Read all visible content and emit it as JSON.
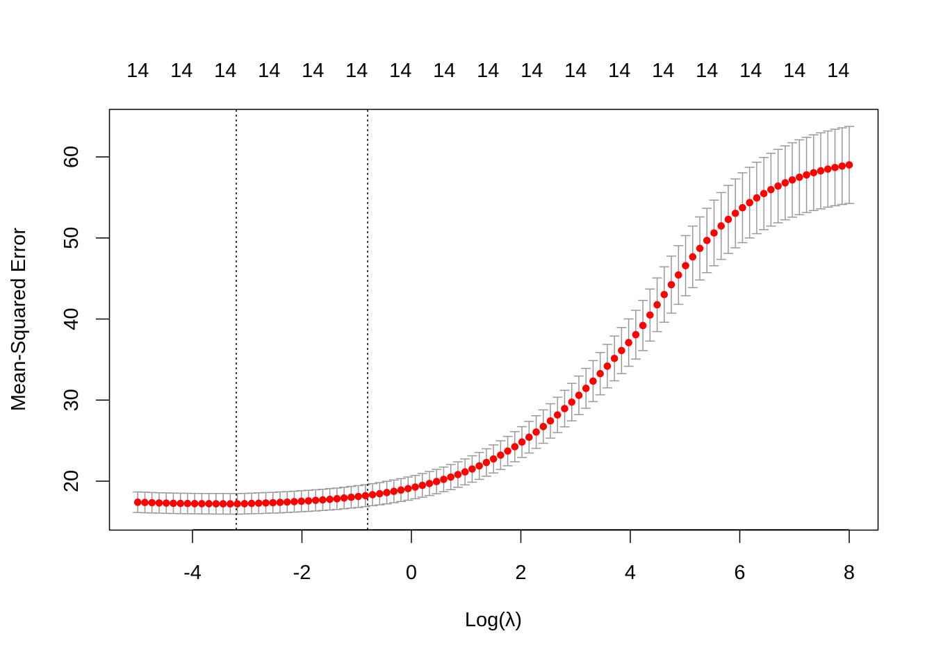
{
  "chart_data": {
    "type": "scatter",
    "title": "",
    "xlabel": "Log(λ)",
    "ylabel": "Mean-Squared Error",
    "xlim": [
      -5.2,
      8.4
    ],
    "ylim": [
      14.2,
      66.1
    ],
    "xticks": [
      -4,
      -2,
      0,
      2,
      4,
      6,
      8
    ],
    "xtick_labels": [
      "-4",
      "-2",
      "0",
      "2",
      "4",
      "6",
      "8"
    ],
    "yticks": [
      20,
      30,
      40,
      50,
      60
    ],
    "ytick_labels": [
      "20",
      "30",
      "40",
      "50",
      "60"
    ],
    "top_axis": {
      "positions": [
        -5,
        -4.2,
        -3.4,
        -2.6,
        -1.8,
        -1,
        -0.2,
        0.6,
        1.4,
        2.2,
        3,
        3.8,
        4.6,
        5.4,
        6.2,
        7,
        7.8
      ],
      "labels": [
        "14",
        "14",
        "14",
        "14",
        "14",
        "14",
        "14",
        "14",
        "14",
        "14",
        "14",
        "14",
        "14",
        "14",
        "14",
        "14",
        "14"
      ]
    },
    "vlines": [
      -3.2,
      -0.8
    ],
    "grid": false,
    "colors": {
      "points": "#ff0000",
      "error_bars": "#999999",
      "vlines": "#000000"
    },
    "x": [
      -5,
      -4.87,
      -4.74,
      -4.61,
      -4.48,
      -4.35,
      -4.22,
      -4.09,
      -3.96,
      -3.83,
      -3.7,
      -3.57,
      -3.44,
      -3.31,
      -3.18,
      -3.05,
      -2.92,
      -2.79,
      -2.66,
      -2.53,
      -2.4,
      -2.27,
      -2.14,
      -2.01,
      -1.88,
      -1.75,
      -1.62,
      -1.49,
      -1.36,
      -1.23,
      -1.1,
      -0.97,
      -0.84,
      -0.71,
      -0.58,
      -0.45,
      -0.32,
      -0.19,
      -0.06,
      0.07,
      0.2,
      0.33,
      0.46,
      0.59,
      0.72,
      0.85,
      0.98,
      1.11,
      1.24,
      1.37,
      1.5,
      1.63,
      1.76,
      1.89,
      2.02,
      2.15,
      2.28,
      2.41,
      2.54,
      2.67,
      2.8,
      2.93,
      3.06,
      3.19,
      3.32,
      3.45,
      3.58,
      3.71,
      3.84,
      3.97,
      4.1,
      4.23,
      4.36,
      4.49,
      4.62,
      4.75,
      4.88,
      5.01,
      5.14,
      5.27,
      5.4,
      5.53,
      5.66,
      5.79,
      5.92,
      6.05,
      6.18,
      6.31,
      6.44,
      6.57,
      6.7,
      6.83,
      6.96,
      7.09,
      7.22,
      7.35,
      7.48,
      7.61,
      7.74,
      7.87,
      8.0
    ],
    "mse": [
      17.4,
      17.37,
      17.34,
      17.31,
      17.29,
      17.27,
      17.25,
      17.24,
      17.23,
      17.22,
      17.22,
      17.21,
      17.21,
      17.2,
      17.2,
      17.22,
      17.25,
      17.28,
      17.31,
      17.34,
      17.38,
      17.42,
      17.47,
      17.52,
      17.57,
      17.63,
      17.69,
      17.76,
      17.83,
      17.92,
      18.01,
      18.1,
      18.21,
      18.33,
      18.45,
      18.59,
      18.74,
      18.9,
      19.08,
      19.27,
      19.48,
      19.71,
      19.95,
      20.22,
      20.5,
      20.81,
      21.14,
      21.5,
      21.88,
      22.3,
      22.74,
      23.21,
      23.71,
      24.25,
      24.82,
      25.42,
      26.06,
      26.73,
      27.43,
      28.17,
      28.95,
      29.75,
      30.59,
      31.45,
      32.34,
      33.26,
      34.19,
      35.14,
      36.11,
      37.09,
      38.07,
      39.2,
      40.49,
      41.76,
      43.02,
      44.24,
      45.43,
      46.58,
      47.67,
      48.71,
      49.69,
      50.62,
      51.48,
      52.29,
      53.04,
      53.73,
      54.36,
      54.94,
      55.48,
      55.96,
      56.4,
      56.8,
      57.16,
      57.49,
      57.78,
      58.05,
      58.28,
      58.5,
      58.69,
      58.86,
      59.01
    ],
    "se": [
      1.27,
      1.27,
      1.26,
      1.26,
      1.26,
      1.26,
      1.26,
      1.26,
      1.26,
      1.26,
      1.26,
      1.27,
      1.27,
      1.27,
      1.27,
      1.27,
      1.27,
      1.28,
      1.28,
      1.28,
      1.29,
      1.29,
      1.29,
      1.3,
      1.3,
      1.31,
      1.31,
      1.32,
      1.32,
      1.33,
      1.34,
      1.35,
      1.35,
      1.36,
      1.37,
      1.39,
      1.4,
      1.41,
      1.43,
      1.44,
      1.46,
      1.48,
      1.5,
      1.52,
      1.55,
      1.57,
      1.6,
      1.63,
      1.66,
      1.69,
      1.73,
      1.77,
      1.81,
      1.86,
      1.9,
      1.95,
      2.01,
      2.06,
      2.12,
      2.18,
      2.25,
      2.31,
      2.38,
      2.46,
      2.53,
      2.61,
      2.68,
      2.76,
      2.84,
      2.92,
      3.01,
      3.1,
      3.21,
      3.31,
      3.42,
      3.52,
      3.62,
      3.71,
      3.8,
      3.89,
      3.97,
      4.05,
      4.12,
      4.19,
      4.25,
      4.31,
      4.36,
      4.41,
      4.45,
      4.49,
      4.53,
      4.56,
      4.59,
      4.62,
      4.64,
      4.67,
      4.69,
      4.7,
      4.72,
      4.73,
      4.75
    ]
  }
}
